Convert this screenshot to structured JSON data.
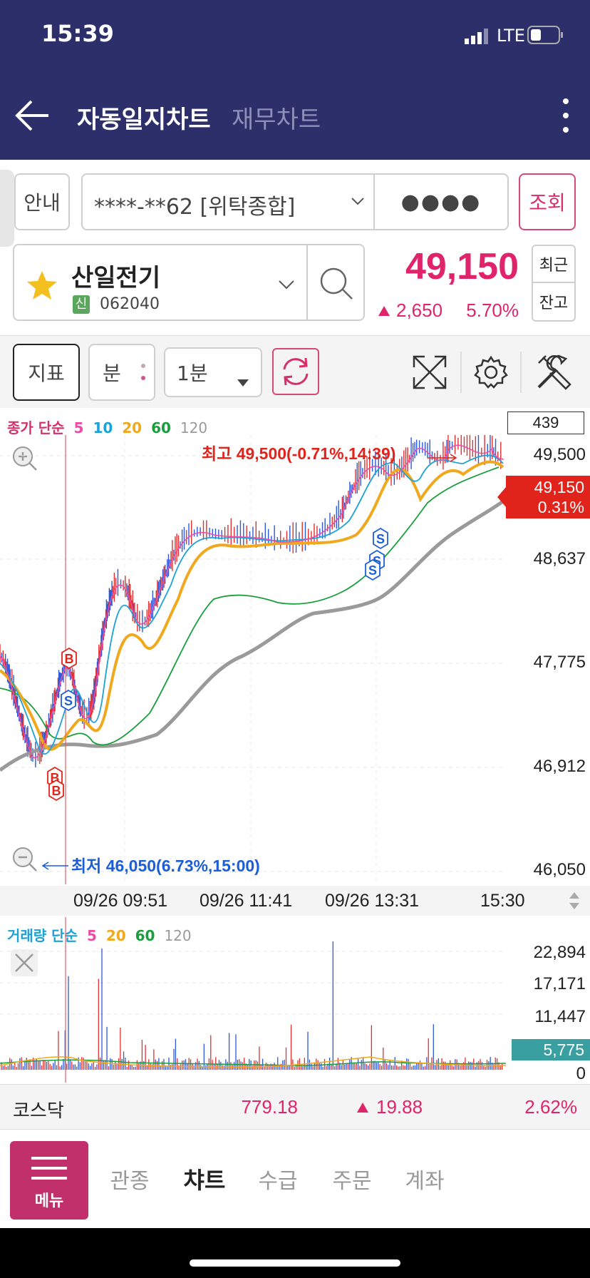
{
  "status": {
    "time": "15:39",
    "network": "LTE"
  },
  "nav": {
    "tab_active": "자동일지차트",
    "tab_inactive": "재무차트"
  },
  "account": {
    "guide_label": "안내",
    "account_text": "****-**62 [위탁종합]",
    "password_mask": "●●●●",
    "query_label": "조회"
  },
  "stock": {
    "name": "산일전기",
    "badge": "신",
    "code": "062040",
    "price": "49,150",
    "change": "2,650",
    "change_pct": "5.70%",
    "recent_label": "최근",
    "balance_label": "잔고"
  },
  "toolbar": {
    "indicator_label": "지표",
    "period_label": "분",
    "interval_label": "1분"
  },
  "chart_header": {
    "title": "종가 단순",
    "ma5": "5",
    "ma10": "10",
    "ma20": "20",
    "ma60": "60",
    "ma120": "120",
    "count": "439"
  },
  "annotations": {
    "high": "최고 49,500(-0.71%,14:39)",
    "low": "최저 46,050(6.73%,15:00)",
    "buy_marker": "B",
    "sell_marker": "S"
  },
  "price_axis": {
    "t1": "49,500",
    "t2": "48,637",
    "t3": "47,775",
    "t4": "46,912",
    "t5": "46,050",
    "current_price": "49,150",
    "current_pct": "0.31%"
  },
  "time_axis": {
    "t1": "09/26 09:51",
    "t2": "09/26 11:41",
    "t3": "09/26 13:31",
    "t4": "15:30"
  },
  "volume_header": {
    "title": "거래량 단순",
    "ma5": "5",
    "ma20": "20",
    "ma60": "60",
    "ma120": "120"
  },
  "volume_axis": {
    "t1": "22,894",
    "t2": "17,171",
    "t3": "11,447",
    "t4": "0",
    "current": "5,775"
  },
  "market": {
    "name": "코스닥",
    "value": "779.18",
    "change": "19.88",
    "change_pct": "2.62%"
  },
  "bottom_tabs": {
    "menu": "메뉴",
    "watch": "관종",
    "chart": "챠트",
    "supply": "수급",
    "order": "주문",
    "account": "계좌"
  },
  "colors": {
    "header_bg": "#2d2f6b",
    "up": "#e0246c",
    "ma5": "#ee4aa6",
    "ma10": "#1ba3d6",
    "ma20": "#f0a81c",
    "ma60": "#1a9e3c",
    "ma120": "#9a9a9a",
    "menu_bg": "#c2306b"
  },
  "chart_data": [
    {
      "type": "line",
      "title": "종가 단순",
      "x": [
        "09/26 09:51",
        "09/26 11:41",
        "09/26 13:31",
        "15:30"
      ],
      "ylim": [
        46050,
        49500
      ],
      "y_ticks": [
        49500,
        48637,
        47775,
        46912,
        46050
      ],
      "high": 49500,
      "low": 46050,
      "last": 49150
    },
    {
      "type": "bar",
      "title": "거래량 단순",
      "y_ticks": [
        22894,
        17171,
        11447,
        0
      ],
      "last": 5775
    }
  ]
}
